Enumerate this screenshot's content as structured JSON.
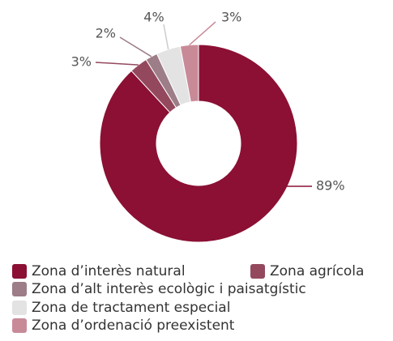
{
  "chart_data": {
    "type": "donut",
    "categories": [
      "Zona d’interès natural",
      "Zona agrícola",
      "Zona d’alt interès ecològic i paisatgístic",
      "Zona de tractament especial",
      "Zona d’ordenació preexistent"
    ],
    "values": [
      89,
      3,
      2,
      4,
      3
    ],
    "value_labels": [
      "89%",
      "3%",
      "2%",
      "4%",
      "3%"
    ],
    "colors": [
      "#8b1034",
      "#94485e",
      "#9d7d87",
      "#e3e3e3",
      "#c98a98"
    ]
  }
}
